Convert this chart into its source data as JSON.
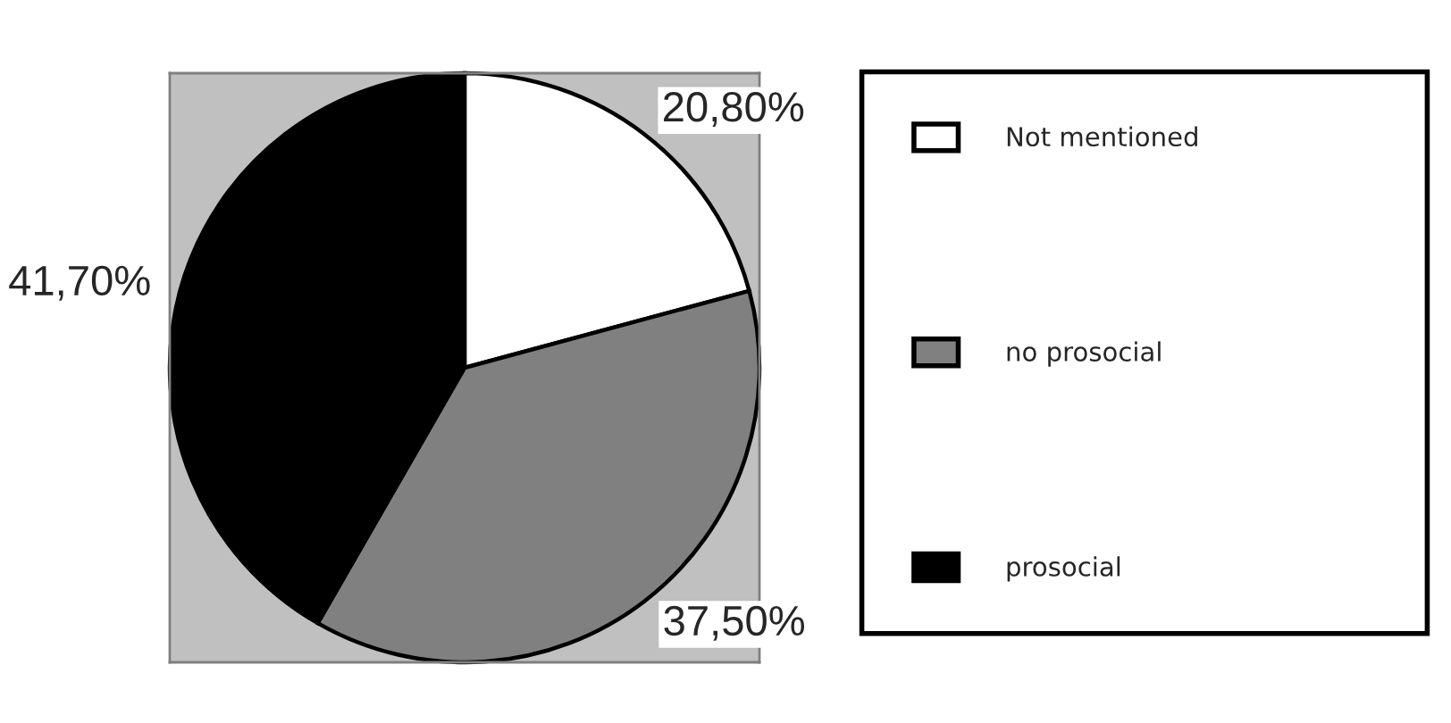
{
  "chart_data": {
    "type": "pie",
    "categories": [
      "Not mentioned",
      "no prosocial",
      "prosocial"
    ],
    "values": [
      20.8,
      37.5,
      41.7
    ],
    "colors": [
      "#ffffff",
      "#808080",
      "#000000"
    ],
    "value_labels": [
      "20,80%",
      "37,50%",
      "41,70%"
    ],
    "legend": "right"
  }
}
